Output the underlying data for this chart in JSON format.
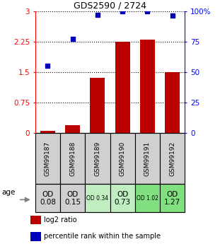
{
  "title": "GDS2590 / 2724",
  "samples": [
    "GSM99187",
    "GSM99188",
    "GSM99189",
    "GSM99190",
    "GSM99191",
    "GSM99192"
  ],
  "log2_ratio": [
    0.05,
    0.2,
    1.35,
    2.25,
    2.3,
    1.5
  ],
  "percentile_rank": [
    55,
    77,
    97,
    100,
    100,
    96
  ],
  "od_labels": [
    "OD\n0.08",
    "OD\n0.15",
    "OD 0.34",
    "OD\n0.73",
    "OD 1.02",
    "OD\n1.27"
  ],
  "od_big": [
    true,
    true,
    false,
    true,
    false,
    true
  ],
  "cell_colors": [
    "#d0d0d0",
    "#d0d0d0",
    "#c0eec0",
    "#c0eec0",
    "#80e080",
    "#80e080"
  ],
  "sample_bg": "#d0d0d0",
  "bar_color": "#bb0000",
  "dot_color": "#0000bb",
  "left_yticks": [
    0,
    0.75,
    1.5,
    2.25,
    3
  ],
  "right_ytick_labels": [
    "0",
    "25",
    "50",
    "75",
    "100%"
  ],
  "right_ytick_vals": [
    0,
    25,
    50,
    75,
    100
  ],
  "ylim_left": [
    0,
    3
  ],
  "ylim_right": [
    0,
    100
  ],
  "age_label": "age",
  "legend_log2": "log2 ratio",
  "legend_pct": "percentile rank within the sample"
}
